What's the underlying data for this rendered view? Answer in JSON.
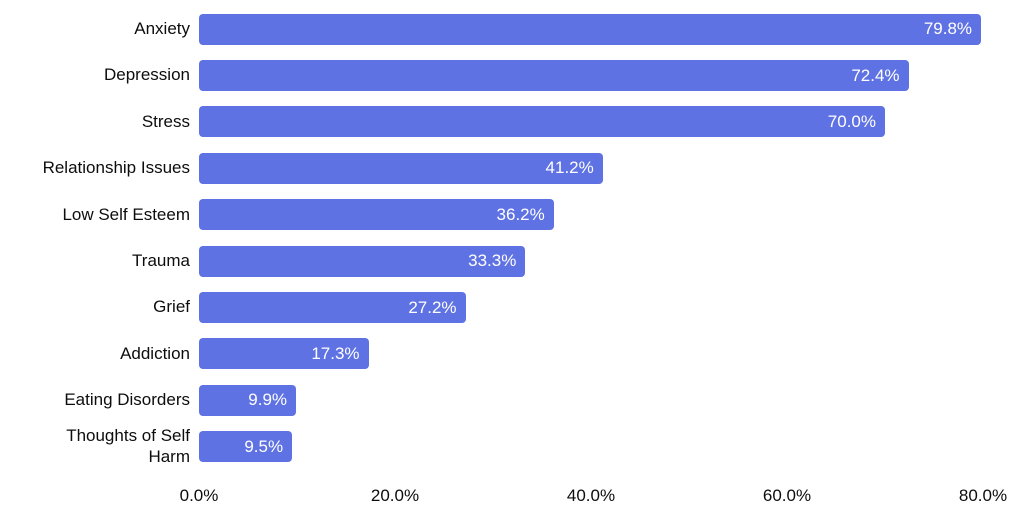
{
  "chart_data": {
    "type": "bar",
    "orientation": "horizontal",
    "title": "",
    "xlabel": "",
    "ylabel": "",
    "grid": false,
    "legend": false,
    "xlim": [
      0,
      80
    ],
    "categories": [
      "Anxiety",
      "Depression",
      "Stress",
      "Relationship Issues",
      "Low Self Esteem",
      "Trauma",
      "Grief",
      "Addiction",
      "Eating Disorders",
      "Thoughts of Self Harm"
    ],
    "values": [
      79.8,
      72.4,
      70.0,
      41.2,
      36.2,
      33.3,
      27.2,
      17.3,
      9.9,
      9.5
    ],
    "value_labels": [
      "79.8%",
      "72.4%",
      "70.0%",
      "41.2%",
      "36.2%",
      "33.3%",
      "27.2%",
      "17.3%",
      "9.9%",
      "9.5%"
    ],
    "x_tick_labels": [
      "0.0%",
      "20.0%",
      "40.0%",
      "60.0%",
      "80.0%"
    ],
    "colors": {
      "bar": "#5f72e3",
      "value_label": "#ffffff",
      "axis_text": "#0d0d0d",
      "background": "#ffffff"
    }
  }
}
